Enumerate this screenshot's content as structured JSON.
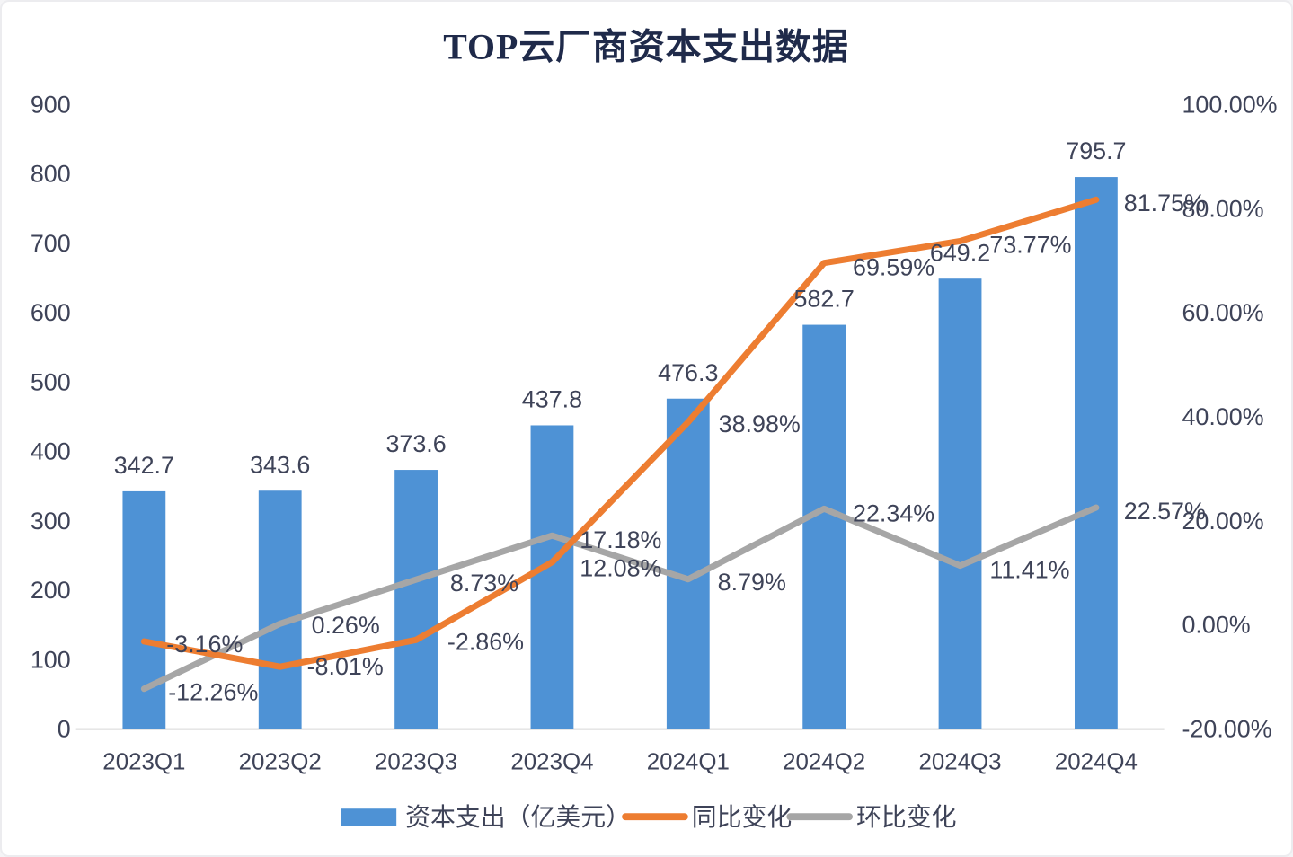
{
  "chart_data": {
    "type": "combo-bar-line",
    "title": "TOP云厂商资本支出数据",
    "categories": [
      "2023Q1",
      "2023Q2",
      "2023Q3",
      "2023Q4",
      "2024Q1",
      "2024Q2",
      "2024Q3",
      "2024Q4"
    ],
    "series": [
      {
        "name": "资本支出（亿美元）",
        "type": "bar",
        "axis": "left",
        "color": "#4e92d5",
        "values": [
          342.7,
          343.6,
          373.6,
          437.8,
          476.3,
          582.7,
          649.2,
          795.7
        ]
      },
      {
        "name": "同比变化",
        "type": "line",
        "axis": "right",
        "color": "#ed7d31",
        "values": [
          -3.16,
          -8.01,
          -2.86,
          12.08,
          38.98,
          69.59,
          73.77,
          81.75
        ]
      },
      {
        "name": "环比变化",
        "type": "line",
        "axis": "right",
        "color": "#a6a6a6",
        "values": [
          -12.26,
          0.26,
          8.73,
          17.18,
          8.79,
          22.34,
          11.41,
          22.57
        ]
      }
    ],
    "left_axis": {
      "min": 0,
      "max": 900,
      "step": 100,
      "ticks": [
        "0",
        "100",
        "200",
        "300",
        "400",
        "500",
        "600",
        "700",
        "800",
        "900"
      ]
    },
    "right_axis": {
      "min": -20,
      "max": 100,
      "step": 20,
      "ticks": [
        "-20.00%",
        "0.00%",
        "20.00%",
        "40.00%",
        "60.00%",
        "80.00%",
        "100.00%"
      ]
    },
    "grid": false,
    "legend_position": "bottom",
    "label_offsets": {
      "yoy": [
        [
          25,
          12
        ],
        [
          30,
          9
        ],
        [
          35,
          11
        ],
        [
          31,
          16
        ],
        [
          34,
          11
        ],
        [
          32,
          14
        ],
        [
          33,
          13
        ],
        [
          31,
          13
        ]
      ],
      "qoq": [
        [
          27,
          13
        ],
        [
          35,
          11
        ],
        [
          38,
          13
        ],
        [
          31,
          14
        ],
        [
          33,
          12
        ],
        [
          32,
          14
        ],
        [
          33,
          14
        ],
        [
          31,
          13
        ]
      ]
    },
    "colors": {
      "label_text": "#3e4358",
      "axis_line": "#d6d6d6",
      "title_text": "#1f2a4a"
    }
  }
}
